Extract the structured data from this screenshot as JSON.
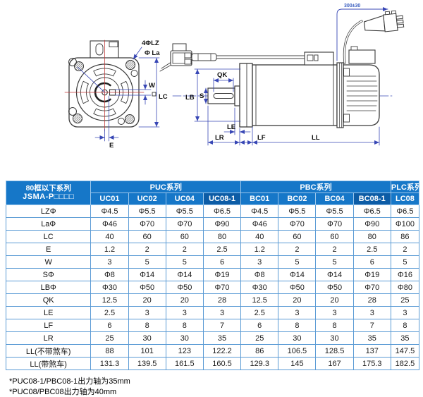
{
  "diagram": {
    "front_labels": {
      "holes": "4ΦLZ",
      "la": "Φ La",
      "w": "W",
      "lc": "LC",
      "e": "E"
    },
    "side_labels": {
      "qk": "QK",
      "lb": "LB",
      "s": "S",
      "le": "LE",
      "lr": "LR",
      "lf": "LF",
      "ll": "LL",
      "cable_length": "300±30"
    }
  },
  "table": {
    "corner_header": {
      "line1": "80框以下系列",
      "line2": "JSMA-P□□□□"
    },
    "groups": [
      {
        "label": "PUC系列",
        "span": 4
      },
      {
        "label": "PBC系列",
        "span": 4
      },
      {
        "label": "PLC系列",
        "span": 1
      }
    ],
    "columns": [
      "UC01",
      "UC02",
      "UC04",
      "UC08-1",
      "BC01",
      "BC02",
      "BC04",
      "BC08-1",
      "LC08"
    ],
    "dark_column_indexes": [
      3,
      7
    ],
    "rows": [
      {
        "label": "LZΦ",
        "values": [
          "Φ4.5",
          "Φ5.5",
          "Φ5.5",
          "Φ6.5",
          "Φ4.5",
          "Φ5.5",
          "Φ5.5",
          "Φ6.5",
          "Φ6.5"
        ]
      },
      {
        "label": "LaΦ",
        "values": [
          "Φ46",
          "Φ70",
          "Φ70",
          "Φ90",
          "Φ46",
          "Φ70",
          "Φ70",
          "Φ90",
          "Φ100"
        ]
      },
      {
        "label": "LC",
        "values": [
          "40",
          "60",
          "60",
          "80",
          "40",
          "60",
          "60",
          "80",
          "86"
        ]
      },
      {
        "label": "E",
        "values": [
          "1.2",
          "2",
          "2",
          "2.5",
          "1.2",
          "2",
          "2",
          "2.5",
          "2"
        ]
      },
      {
        "label": "W",
        "values": [
          "3",
          "5",
          "5",
          "6",
          "3",
          "5",
          "5",
          "6",
          "5"
        ]
      },
      {
        "label": "SΦ",
        "values": [
          "Φ8",
          "Φ14",
          "Φ14",
          "Φ19",
          "Φ8",
          "Φ14",
          "Φ14",
          "Φ19",
          "Φ16"
        ]
      },
      {
        "label": "LBΦ",
        "values": [
          "Φ30",
          "Φ50",
          "Φ50",
          "Φ70",
          "Φ30",
          "Φ50",
          "Φ50",
          "Φ70",
          "Φ80"
        ]
      },
      {
        "label": "QK",
        "values": [
          "12.5",
          "20",
          "20",
          "28",
          "12.5",
          "20",
          "20",
          "28",
          "25"
        ]
      },
      {
        "label": "LE",
        "values": [
          "2.5",
          "3",
          "3",
          "3",
          "2.5",
          "3",
          "3",
          "3",
          "3"
        ]
      },
      {
        "label": "LF",
        "values": [
          "6",
          "8",
          "8",
          "7",
          "6",
          "8",
          "8",
          "7",
          "8"
        ]
      },
      {
        "label": "LR",
        "values": [
          "25",
          "30",
          "30",
          "35",
          "25",
          "30",
          "30",
          "35",
          "35"
        ]
      },
      {
        "label": "LL(不带煞车)",
        "values": [
          "88",
          "101",
          "123",
          "122.2",
          "86",
          "106.5",
          "128.5",
          "137",
          "147.5"
        ]
      },
      {
        "label": "LL(带煞车)",
        "values": [
          "131.3",
          "139.5",
          "161.5",
          "160.5",
          "129.3",
          "145",
          "167",
          "175.3",
          "182.5"
        ]
      }
    ]
  },
  "notes": [
    "*PUC08-1/PBC08-1出力轴为35mm",
    "*PUC08/PBC08出力轴为40mm"
  ],
  "colors": {
    "header_blue": "#1677C8",
    "header_dark_blue": "#0C5CA6",
    "grid_border": "#5B9BD5",
    "outer_border": "#2E75B6",
    "dimension_blue": "#3847B5",
    "centerline_red": "#C23A3A",
    "drawing_line": "#3A3A3A"
  }
}
